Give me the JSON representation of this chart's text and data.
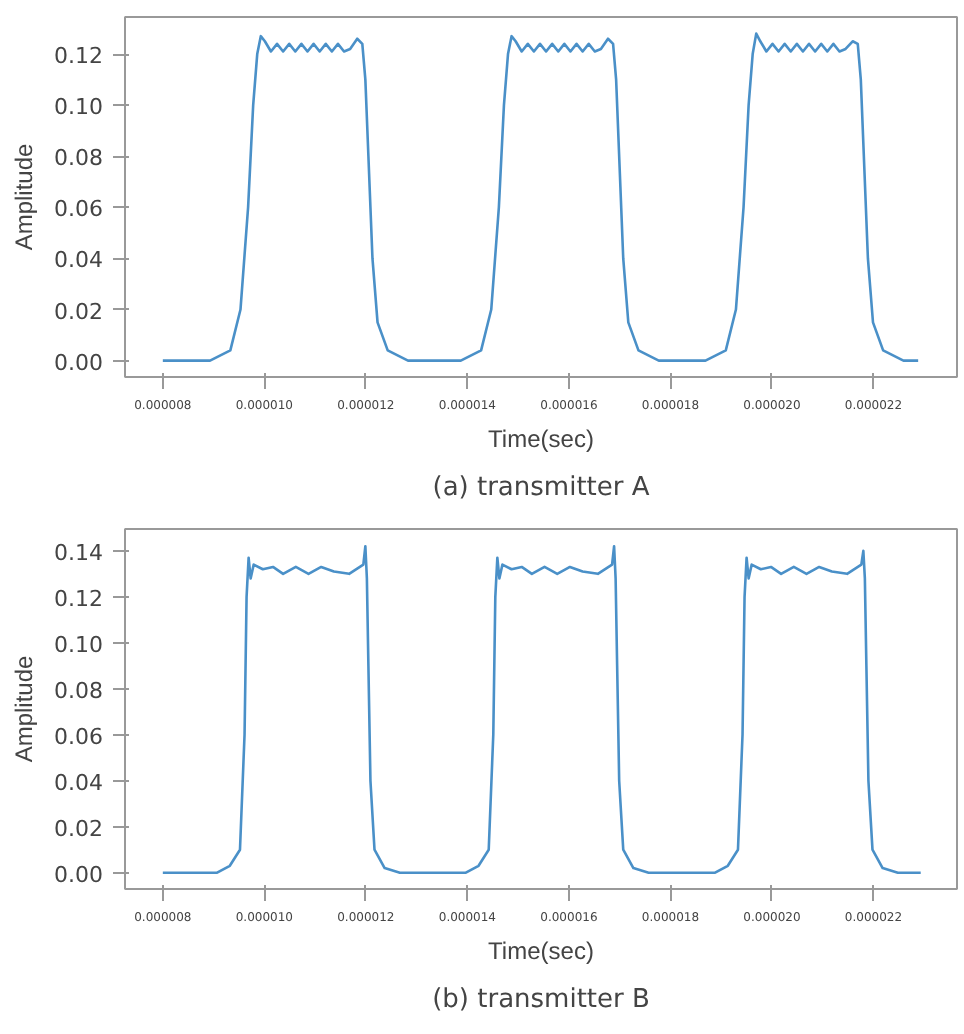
{
  "chart_data": [
    {
      "type": "line",
      "xlabel": "Time(sec)",
      "ylabel": "Amplitude",
      "annotations": [
        "(a) transmitter A"
      ],
      "grid": false,
      "marker": "none",
      "line_style": "solid",
      "xlim": [
        7.255e-06,
        2.3645e-05
      ],
      "ylim": [
        -0.0064,
        0.1345
      ],
      "xticks": [
        {
          "value": 8e-06,
          "label": "0.000008"
        },
        {
          "value": 1e-05,
          "label": "0.000010"
        },
        {
          "value": 1.2e-05,
          "label": "0.000012"
        },
        {
          "value": 1.4e-05,
          "label": "0.000014"
        },
        {
          "value": 1.6e-05,
          "label": "0.000016"
        },
        {
          "value": 1.8e-05,
          "label": "0.000018"
        },
        {
          "value": 2e-05,
          "label": "0.000020"
        },
        {
          "value": 2.2e-05,
          "label": "0.000022"
        }
      ],
      "yticks": [
        {
          "value": 0,
          "label": "0.00"
        },
        {
          "value": 0.02,
          "label": "0.02"
        },
        {
          "value": 0.04,
          "label": "0.04"
        },
        {
          "value": 0.06,
          "label": "0.06"
        },
        {
          "value": 0.08,
          "label": "0.08"
        },
        {
          "value": 0.1,
          "label": "0.10"
        },
        {
          "value": 0.12,
          "label": "0.12"
        }
      ],
      "series": [
        {
          "color": "#4a90c8",
          "x": [
            8e-06,
            8.93e-06,
            9.33e-06,
            9.53e-06,
            9.68e-06,
            9.78e-06,
            9.86e-06,
            9.93e-06,
            1.001e-05,
            1.013e-05,
            1.025e-05,
            1.037e-05,
            1.049e-05,
            1.061e-05,
            1.073e-05,
            1.085e-05,
            1.097e-05,
            1.109e-05,
            1.121e-05,
            1.133e-05,
            1.145e-05,
            1.157e-05,
            1.169e-05,
            1.183e-05,
            1.193e-05,
            1.199e-05,
            1.205e-05,
            1.213e-05,
            1.223e-05,
            1.243e-05,
            1.283e-05,
            1.387e-05,
            1.427e-05,
            1.447e-05,
            1.462e-05,
            1.472e-05,
            1.48e-05,
            1.487e-05,
            1.495e-05,
            1.507e-05,
            1.519e-05,
            1.531e-05,
            1.543e-05,
            1.555e-05,
            1.567e-05,
            1.579e-05,
            1.591e-05,
            1.603e-05,
            1.615e-05,
            1.627e-05,
            1.639e-05,
            1.651e-05,
            1.663e-05,
            1.677e-05,
            1.687e-05,
            1.693e-05,
            1.699e-05,
            1.707e-05,
            1.717e-05,
            1.737e-05,
            1.777e-05,
            1.869e-05,
            1.909e-05,
            1.929e-05,
            1.944e-05,
            1.954e-05,
            1.962e-05,
            1.969e-05,
            1.977e-05,
            1.989e-05,
            2.001e-05,
            2.013e-05,
            2.025e-05,
            2.037e-05,
            2.049e-05,
            2.061e-05,
            2.073e-05,
            2.085e-05,
            2.097e-05,
            2.109e-05,
            2.121e-05,
            2.133e-05,
            2.145e-05,
            2.159e-05,
            2.169e-05,
            2.175e-05,
            2.181e-05,
            2.189e-05,
            2.199e-05,
            2.219e-05,
            2.259e-05,
            2.288e-05
          ],
          "values": [
            0,
            0,
            0.004,
            0.02,
            0.06,
            0.1,
            0.12,
            0.127,
            0.125,
            0.121,
            0.124,
            0.121,
            0.124,
            0.121,
            0.124,
            0.121,
            0.124,
            0.121,
            0.124,
            0.121,
            0.124,
            0.121,
            0.122,
            0.126,
            0.124,
            0.11,
            0.08,
            0.04,
            0.015,
            0.004,
            0,
            0,
            0.004,
            0.02,
            0.06,
            0.1,
            0.12,
            0.127,
            0.125,
            0.121,
            0.124,
            0.121,
            0.124,
            0.121,
            0.124,
            0.121,
            0.124,
            0.121,
            0.124,
            0.121,
            0.124,
            0.121,
            0.122,
            0.126,
            0.124,
            0.11,
            0.08,
            0.04,
            0.015,
            0.004,
            0,
            0,
            0.004,
            0.02,
            0.06,
            0.1,
            0.12,
            0.128,
            0.125,
            0.121,
            0.124,
            0.121,
            0.124,
            0.121,
            0.124,
            0.121,
            0.124,
            0.121,
            0.124,
            0.121,
            0.124,
            0.121,
            0.122,
            0.125,
            0.124,
            0.11,
            0.08,
            0.04,
            0.015,
            0.004,
            0,
            0
          ]
        }
      ]
    },
    {
      "type": "line",
      "xlabel": "Time(sec)",
      "ylabel": "Amplitude",
      "annotations": [
        "(b) transmitter B"
      ],
      "grid": false,
      "marker": "none",
      "line_style": "solid",
      "xlim": [
        7.255e-06,
        2.3645e-05
      ],
      "ylim": [
        -0.0071,
        0.1495
      ],
      "xticks": [
        {
          "value": 8e-06,
          "label": "0.000008"
        },
        {
          "value": 1e-05,
          "label": "0.000010"
        },
        {
          "value": 1.2e-05,
          "label": "0.000012"
        },
        {
          "value": 1.4e-05,
          "label": "0.000014"
        },
        {
          "value": 1.6e-05,
          "label": "0.000016"
        },
        {
          "value": 1.8e-05,
          "label": "0.000018"
        },
        {
          "value": 2e-05,
          "label": "0.000020"
        },
        {
          "value": 2.2e-05,
          "label": "0.000022"
        }
      ],
      "yticks": [
        {
          "value": 0,
          "label": "0.00"
        },
        {
          "value": 0.02,
          "label": "0.02"
        },
        {
          "value": 0.04,
          "label": "0.04"
        },
        {
          "value": 0.06,
          "label": "0.06"
        },
        {
          "value": 0.08,
          "label": "0.08"
        },
        {
          "value": 0.1,
          "label": "0.10"
        },
        {
          "value": 0.12,
          "label": "0.12"
        },
        {
          "value": 0.14,
          "label": "0.14"
        }
      ],
      "series": [
        {
          "color": "#4a90c8",
          "x": [
            8e-06,
            9.07e-06,
            9.32e-06,
            9.52e-06,
            9.61e-06,
            9.65e-06,
            9.69e-06,
            9.73e-06,
            9.79e-06,
            9.97e-06,
            1.017e-05,
            1.037e-05,
            1.062e-05,
            1.087e-05,
            1.112e-05,
            1.137e-05,
            1.167e-05,
            1.195e-05,
            1.199e-05,
            1.202e-05,
            1.205e-05,
            1.209e-05,
            1.217e-05,
            1.237e-05,
            1.267e-05,
            1.397e-05,
            1.422e-05,
            1.442e-05,
            1.451e-05,
            1.455e-05,
            1.459e-05,
            1.463e-05,
            1.469e-05,
            1.487e-05,
            1.507e-05,
            1.527e-05,
            1.552e-05,
            1.577e-05,
            1.602e-05,
            1.627e-05,
            1.657e-05,
            1.685e-05,
            1.689e-05,
            1.692e-05,
            1.695e-05,
            1.699e-05,
            1.707e-05,
            1.727e-05,
            1.757e-05,
            1.888e-05,
            1.913e-05,
            1.933e-05,
            1.942e-05,
            1.946e-05,
            1.95e-05,
            1.954e-05,
            1.96e-05,
            1.978e-05,
            1.998e-05,
            2.018e-05,
            2.043e-05,
            2.068e-05,
            2.093e-05,
            2.118e-05,
            2.148e-05,
            2.176e-05,
            2.18e-05,
            2.183e-05,
            2.186e-05,
            2.19e-05,
            2.198e-05,
            2.218e-05,
            2.248e-05,
            2.293e-05
          ],
          "values": [
            0,
            0,
            0.003,
            0.01,
            0.06,
            0.12,
            0.137,
            0.128,
            0.134,
            0.132,
            0.133,
            0.13,
            0.133,
            0.13,
            0.133,
            0.131,
            0.13,
            0.134,
            0.142,
            0.128,
            0.09,
            0.04,
            0.01,
            0.002,
            0,
            0,
            0.003,
            0.01,
            0.06,
            0.12,
            0.137,
            0.128,
            0.134,
            0.132,
            0.133,
            0.13,
            0.133,
            0.13,
            0.133,
            0.131,
            0.13,
            0.134,
            0.142,
            0.128,
            0.09,
            0.04,
            0.01,
            0.002,
            0,
            0,
            0.003,
            0.01,
            0.06,
            0.12,
            0.137,
            0.128,
            0.134,
            0.132,
            0.133,
            0.13,
            0.133,
            0.13,
            0.133,
            0.131,
            0.13,
            0.134,
            0.14,
            0.128,
            0.09,
            0.04,
            0.01,
            0.002,
            0,
            0
          ]
        }
      ]
    }
  ]
}
